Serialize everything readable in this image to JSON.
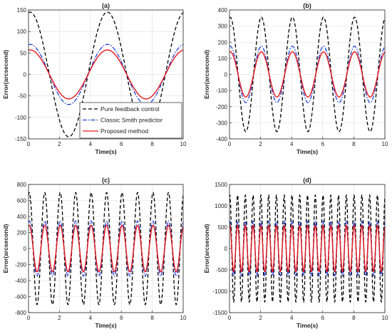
{
  "chart_data": [
    {
      "type": "line",
      "title": "(a)",
      "xlabel": "Time(s)",
      "ylabel": "Error(arcsecond)",
      "xlim": [
        0,
        10
      ],
      "ylim": [
        -150,
        150
      ],
      "xticks": [
        0,
        2,
        4,
        6,
        8,
        10
      ],
      "yticks": [
        -150,
        -100,
        -50,
        0,
        50,
        100,
        150
      ],
      "grid": true,
      "legend": {
        "position": "bottom-right",
        "entries": [
          "Pure feedback control",
          "Classic Smith predictor",
          "Proposed method"
        ]
      },
      "period_s": 5.0,
      "phase_peak_s": 0.1,
      "series": [
        {
          "name": "Pure feedback control",
          "amplitude": 145,
          "color": "#000000",
          "dash": "dashed"
        },
        {
          "name": "Classic Smith predictor",
          "amplitude": 70,
          "color": "#1f3fd8",
          "dash": "dashdot"
        },
        {
          "name": "Proposed method",
          "amplitude": 57,
          "color": "#e8161b",
          "dash": "solid"
        }
      ]
    },
    {
      "type": "line",
      "title": "(b)",
      "xlabel": "Time(s)",
      "ylabel": "Error(arcsecond)",
      "xlim": [
        0,
        10
      ],
      "ylim": [
        -400,
        400
      ],
      "xticks": [
        0,
        2,
        4,
        6,
        8,
        10
      ],
      "yticks": [
        -400,
        -300,
        -200,
        -100,
        0,
        100,
        200,
        300,
        400
      ],
      "grid": true,
      "period_s": 2.0,
      "phase_peak_s": 0.05,
      "series": [
        {
          "name": "Pure feedback control",
          "amplitude": 355,
          "color": "#000000",
          "dash": "dashed"
        },
        {
          "name": "Classic Smith predictor",
          "amplitude": 175,
          "color": "#1f3fd8",
          "dash": "dashdot"
        },
        {
          "name": "Proposed method",
          "amplitude": 140,
          "color": "#e8161b",
          "dash": "solid"
        }
      ]
    },
    {
      "type": "line",
      "title": "(c)",
      "xlabel": "Time(s)",
      "ylabel": "Error(arcsecond)",
      "xlim": [
        0,
        10
      ],
      "ylim": [
        -800,
        800
      ],
      "xticks": [
        0,
        2,
        4,
        6,
        8,
        10
      ],
      "yticks": [
        -800,
        -600,
        -400,
        -200,
        0,
        200,
        400,
        600,
        800
      ],
      "grid": true,
      "period_s": 1.0,
      "phase_peak_s": 0.05,
      "series": [
        {
          "name": "Pure feedback control",
          "amplitude": 700,
          "color": "#000000",
          "dash": "dashed"
        },
        {
          "name": "Classic Smith predictor",
          "amplitude": 345,
          "color": "#1f3fd8",
          "dash": "dashdot"
        },
        {
          "name": "Proposed method",
          "amplitude": 290,
          "color": "#e8161b",
          "dash": "solid"
        }
      ]
    },
    {
      "type": "line",
      "title": "(d)",
      "xlabel": "Time(s)",
      "ylabel": "Error(arcsecond)",
      "xlim": [
        0,
        10
      ],
      "ylim": [
        -1500,
        1500
      ],
      "xticks": [
        0,
        2,
        4,
        6,
        8,
        10
      ],
      "yticks": [
        -1500,
        -1000,
        -500,
        0,
        500,
        1000,
        1500
      ],
      "grid": true,
      "period_s": 0.5,
      "phase_peak_s": 0.02,
      "series": [
        {
          "name": "Pure feedback control",
          "amplitude": 1250,
          "color": "#000000",
          "dash": "dashed"
        },
        {
          "name": "Classic Smith predictor",
          "amplitude": 640,
          "color": "#1f3fd8",
          "dash": "dashdot"
        },
        {
          "name": "Proposed method",
          "amplitude": 540,
          "color": "#e8161b",
          "dash": "solid"
        }
      ]
    }
  ]
}
